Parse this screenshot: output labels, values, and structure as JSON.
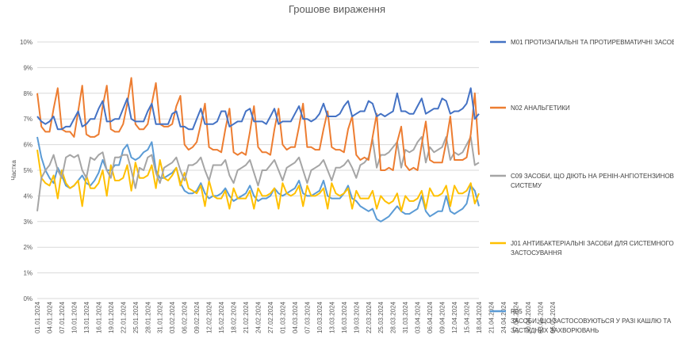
{
  "chart_data": {
    "type": "line",
    "title": "Грошове вираження",
    "ylabel": "Частка",
    "xlabel": "",
    "ylim": [
      0,
      0.1
    ],
    "yticks": [
      "0%",
      "1%",
      "2%",
      "3%",
      "4%",
      "5%",
      "6%",
      "7%",
      "8%",
      "9%",
      "10%"
    ],
    "grid": true,
    "legend": "right",
    "x_tick_labels": [
      "01.01.2024",
      "04.01.2024",
      "07.01.2024",
      "10.01.2024",
      "13.01.2024",
      "16.01.2024",
      "19.01.2024",
      "22.01.2024",
      "25.01.2024",
      "28.01.2024",
      "31.01.2024",
      "03.02.2024",
      "06.02.2024",
      "09.02.2024",
      "12.02.2024",
      "15.02.2024",
      "18.02.2024",
      "21.02.2024",
      "24.02.2024",
      "27.02.2024",
      "01.03.2024",
      "04.03.2024",
      "07.03.2024",
      "10.03.2024",
      "13.03.2024",
      "16.03.2024",
      "19.03.2024",
      "22.03.2024",
      "25.03.2024",
      "28.03.2024",
      "31.03.2024",
      "03.04.2024",
      "06.04.2024",
      "09.04.2024",
      "12.04.2024",
      "15.04.2024",
      "18.04.2024",
      "21.04.2024",
      "24.04.2024",
      "27.04.2024",
      "30.04.2024",
      "03.05.2024",
      "06.05.2024"
    ],
    "series": [
      {
        "name": "M01 ПРОТИЗАПАЛЬНІ ТА ПРОТИРЕВМАТИЧНІ ЗАСОБИ",
        "color": "#4472C4",
        "values": [
          0.071,
          0.069,
          0.068,
          0.069,
          0.071,
          0.066,
          0.066,
          0.067,
          0.067,
          0.07,
          0.073,
          0.067,
          0.068,
          0.07,
          0.07,
          0.074,
          0.077,
          0.069,
          0.069,
          0.07,
          0.07,
          0.074,
          0.078,
          0.07,
          0.069,
          0.069,
          0.069,
          0.073,
          0.076,
          0.068,
          0.068,
          0.068,
          0.068,
          0.072,
          0.073,
          0.067,
          0.067,
          0.066,
          0.066,
          0.07,
          0.074,
          0.068,
          0.068,
          0.068,
          0.069,
          0.073,
          0.073,
          0.067,
          0.068,
          0.069,
          0.069,
          0.073,
          0.074,
          0.069,
          0.069,
          0.069,
          0.068,
          0.071,
          0.074,
          0.068,
          0.069,
          0.069,
          0.069,
          0.072,
          0.075,
          0.07,
          0.07,
          0.069,
          0.07,
          0.072,
          0.076,
          0.071,
          0.071,
          0.071,
          0.072,
          0.075,
          0.077,
          0.071,
          0.072,
          0.073,
          0.073,
          0.077,
          0.076,
          0.071,
          0.072,
          0.071,
          0.072,
          0.073,
          0.08,
          0.073,
          0.073,
          0.072,
          0.072,
          0.075,
          0.078,
          0.072,
          0.073,
          0.074,
          0.074,
          0.078,
          0.077,
          0.072,
          0.073,
          0.073,
          0.074,
          0.076,
          0.082,
          0.07,
          0.072
        ]
      },
      {
        "name": "N02 АНАЛЬГЕТИКИ",
        "color": "#ED7D31",
        "values": [
          0.08,
          0.067,
          0.065,
          0.065,
          0.074,
          0.082,
          0.066,
          0.065,
          0.065,
          0.063,
          0.073,
          0.083,
          0.064,
          0.063,
          0.063,
          0.064,
          0.075,
          0.083,
          0.066,
          0.065,
          0.065,
          0.068,
          0.076,
          0.086,
          0.068,
          0.066,
          0.066,
          0.068,
          0.076,
          0.084,
          0.068,
          0.067,
          0.067,
          0.068,
          0.075,
          0.079,
          0.06,
          0.058,
          0.059,
          0.061,
          0.068,
          0.076,
          0.059,
          0.058,
          0.058,
          0.057,
          0.066,
          0.074,
          0.057,
          0.056,
          0.057,
          0.056,
          0.065,
          0.075,
          0.059,
          0.057,
          0.057,
          0.056,
          0.066,
          0.074,
          0.06,
          0.058,
          0.059,
          0.059,
          0.067,
          0.076,
          0.059,
          0.059,
          0.058,
          0.058,
          0.066,
          0.073,
          0.059,
          0.058,
          0.058,
          0.057,
          0.066,
          0.071,
          0.056,
          0.054,
          0.055,
          0.054,
          0.063,
          0.072,
          0.05,
          0.05,
          0.051,
          0.05,
          0.061,
          0.067,
          0.052,
          0.05,
          0.051,
          0.05,
          0.06,
          0.069,
          0.054,
          0.053,
          0.053,
          0.053,
          0.061,
          0.071,
          0.054,
          0.054,
          0.054,
          0.055,
          0.064,
          0.08,
          0.056
        ]
      },
      {
        "name": "C09 ЗАСОБИ, ЩО ДІЮТЬ НА РЕНІН-АНГІОТЕНЗИНОВУ СИСТЕМУ",
        "color": "#A5A5A5",
        "values": [
          0.034,
          0.047,
          0.05,
          0.052,
          0.056,
          0.05,
          0.047,
          0.055,
          0.056,
          0.055,
          0.056,
          0.05,
          0.047,
          0.055,
          0.054,
          0.056,
          0.057,
          0.05,
          0.047,
          0.055,
          0.055,
          0.056,
          0.056,
          0.05,
          0.043,
          0.051,
          0.05,
          0.055,
          0.056,
          0.049,
          0.045,
          0.051,
          0.052,
          0.053,
          0.055,
          0.05,
          0.046,
          0.052,
          0.052,
          0.053,
          0.055,
          0.05,
          0.046,
          0.052,
          0.052,
          0.052,
          0.054,
          0.048,
          0.045,
          0.05,
          0.051,
          0.052,
          0.054,
          0.049,
          0.044,
          0.05,
          0.05,
          0.052,
          0.054,
          0.05,
          0.046,
          0.051,
          0.052,
          0.053,
          0.055,
          0.05,
          0.045,
          0.05,
          0.051,
          0.052,
          0.054,
          0.05,
          0.046,
          0.051,
          0.051,
          0.052,
          0.054,
          0.051,
          0.047,
          0.052,
          0.053,
          0.055,
          0.062,
          0.051,
          0.056,
          0.056,
          0.057,
          0.059,
          0.061,
          0.051,
          0.058,
          0.057,
          0.058,
          0.061,
          0.063,
          0.053,
          0.059,
          0.057,
          0.058,
          0.059,
          0.063,
          0.054,
          0.057,
          0.056,
          0.057,
          0.06,
          0.063,
          0.052,
          0.053
        ]
      },
      {
        "name": "J01 АНТИБАКТЕРІАЛЬНІ ЗАСОБИ ДЛЯ СИСТЕМНОГО ЗАСТОСУВАННЯ",
        "color": "#FFC000",
        "values": [
          0.058,
          0.047,
          0.045,
          0.044,
          0.048,
          0.039,
          0.05,
          0.045,
          0.043,
          0.044,
          0.046,
          0.036,
          0.048,
          0.043,
          0.043,
          0.045,
          0.05,
          0.04,
          0.052,
          0.046,
          0.046,
          0.047,
          0.052,
          0.042,
          0.053,
          0.047,
          0.047,
          0.048,
          0.052,
          0.043,
          0.054,
          0.047,
          0.046,
          0.048,
          0.051,
          0.044,
          0.049,
          0.043,
          0.042,
          0.041,
          0.044,
          0.036,
          0.046,
          0.04,
          0.039,
          0.039,
          0.042,
          0.035,
          0.043,
          0.039,
          0.039,
          0.039,
          0.042,
          0.035,
          0.043,
          0.04,
          0.04,
          0.041,
          0.043,
          0.035,
          0.045,
          0.041,
          0.04,
          0.041,
          0.044,
          0.036,
          0.044,
          0.04,
          0.04,
          0.041,
          0.043,
          0.035,
          0.045,
          0.041,
          0.04,
          0.041,
          0.043,
          0.035,
          0.042,
          0.039,
          0.039,
          0.039,
          0.042,
          0.035,
          0.04,
          0.038,
          0.037,
          0.038,
          0.041,
          0.034,
          0.04,
          0.038,
          0.038,
          0.039,
          0.042,
          0.035,
          0.043,
          0.04,
          0.04,
          0.041,
          0.044,
          0.036,
          0.044,
          0.041,
          0.041,
          0.042,
          0.045,
          0.037,
          0.041
        ]
      },
      {
        "name": "R05 ЗАСОБИ, ЩО ЗАСТОСОВУЮТЬСЯ У РАЗІ КАШЛЮ ТА ЗАСТУДНИХ ЗАХВОРЮВАНЬ",
        "color": "#5B9BD5",
        "values": [
          0.063,
          0.055,
          0.05,
          0.047,
          0.045,
          0.051,
          0.048,
          0.044,
          0.043,
          0.044,
          0.046,
          0.048,
          0.045,
          0.044,
          0.046,
          0.049,
          0.054,
          0.05,
          0.05,
          0.052,
          0.052,
          0.058,
          0.06,
          0.055,
          0.054,
          0.055,
          0.057,
          0.058,
          0.061,
          0.05,
          0.047,
          0.047,
          0.048,
          0.049,
          0.051,
          0.045,
          0.042,
          0.041,
          0.041,
          0.042,
          0.045,
          0.041,
          0.039,
          0.04,
          0.04,
          0.041,
          0.043,
          0.04,
          0.038,
          0.039,
          0.04,
          0.041,
          0.044,
          0.04,
          0.038,
          0.039,
          0.039,
          0.04,
          0.043,
          0.041,
          0.04,
          0.041,
          0.042,
          0.043,
          0.046,
          0.041,
          0.04,
          0.04,
          0.041,
          0.042,
          0.046,
          0.04,
          0.039,
          0.039,
          0.039,
          0.041,
          0.044,
          0.039,
          0.038,
          0.036,
          0.035,
          0.034,
          0.035,
          0.031,
          0.03,
          0.031,
          0.032,
          0.034,
          0.036,
          0.034,
          0.033,
          0.033,
          0.034,
          0.035,
          0.04,
          0.034,
          0.032,
          0.033,
          0.034,
          0.034,
          0.04,
          0.034,
          0.033,
          0.034,
          0.035,
          0.037,
          0.044,
          0.042,
          0.036
        ]
      }
    ]
  },
  "legend": [
    {
      "lines": [
        "M01 ПРОТИЗАПАЛЬНІ ТА ПРОТИРЕВМАТИЧНІ ЗАСОБИ"
      ],
      "color": "#4472C4"
    },
    {
      "lines": [
        "N02 АНАЛЬГЕТИКИ"
      ],
      "color": "#ED7D31"
    },
    {
      "lines": [
        "C09 ЗАСОБИ, ЩО ДІЮТЬ НА РЕНІН-АНГІОТЕНЗИНОВУ",
        "СИСТЕМУ"
      ],
      "color": "#A5A5A5"
    },
    {
      "lines": [
        "J01 АНТИБАКТЕРІАЛЬНІ ЗАСОБИ ДЛЯ СИСТЕМНОГО",
        "ЗАСТОСУВАННЯ"
      ],
      "color": "#FFC000"
    },
    {
      "lines": [
        "R05",
        "ЗАСОБИ, ЩО ЗАСТОСОВУЮТЬСЯ У РАЗІ КАШЛЮ ТА",
        "ЗАСТУДНИХ ЗАХВОРЮВАНЬ"
      ],
      "color": "#5B9BD5"
    }
  ]
}
